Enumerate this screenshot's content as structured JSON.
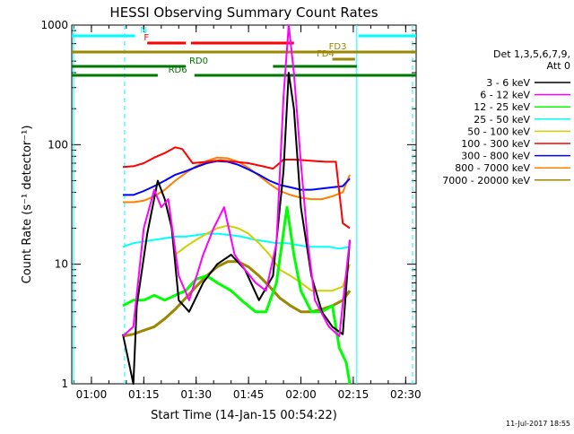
{
  "chart_data": {
    "type": "line",
    "title": "HESSI Observing Summary Count Rates",
    "xlabel": "Start Time (14-Jan-15 00:54:22)",
    "ylabel": "Count Rate (s⁻¹ detector⁻¹)",
    "y_scale": "log",
    "ylim": [
      1,
      1000
    ],
    "xlim": [
      "00:54:22",
      "02:33:00"
    ],
    "x_ticks": [
      "01:00",
      "01:15",
      "01:30",
      "01:45",
      "02:00",
      "02:15",
      "02:30"
    ],
    "y_ticks": [
      "1",
      "10",
      "100",
      "1000"
    ],
    "grid": false,
    "legend_position": "right",
    "legend_header": [
      "Det 1,3,5,6,7,9,",
      "Att 0"
    ],
    "timestamp": "11-Jul-2017 18:55",
    "flags": [
      {
        "label": "N",
        "color": "#00ffff",
        "segments": [
          [
            "00:54:22",
            "01:12:30"
          ],
          [
            "02:16:30",
            "02:33:00"
          ]
        ]
      },
      {
        "label": "F",
        "color": "#ff0000",
        "segments": [
          [
            "01:16:00",
            "01:27:00"
          ],
          [
            "01:28:30",
            "01:58:00"
          ]
        ]
      },
      {
        "label": "FD3",
        "color": "#9b8700",
        "segments": [
          [
            "00:54:22",
            "02:33:00"
          ]
        ]
      },
      {
        "label": "FD4",
        "color": "#9b8700",
        "segments": [
          [
            "02:09:00",
            "02:15:30"
          ]
        ]
      },
      {
        "label": "RD0",
        "color": "#007800",
        "segments": [
          [
            "00:54:22",
            "01:27:00"
          ],
          [
            "01:52:00",
            "02:16:00"
          ]
        ]
      },
      {
        "label": "RD6",
        "color": "#007800",
        "segments": [
          [
            "00:54:22",
            "01:19:00"
          ],
          [
            "01:29:30",
            "02:33:00"
          ]
        ]
      }
    ],
    "gaps": [
      [
        "01:09:30",
        "02:33:00"
      ]
    ],
    "series": [
      {
        "name": "3 - 6 keV",
        "color": "#000000",
        "points": [
          [
            "01:09:00",
            2.6
          ],
          [
            "01:12:00",
            1.0
          ],
          [
            "01:13:00",
            4.5
          ],
          [
            "01:16:00",
            18
          ],
          [
            "01:19:00",
            50
          ],
          [
            "01:21:00",
            35
          ],
          [
            "01:23:00",
            20
          ],
          [
            "01:25:00",
            5
          ],
          [
            "01:28:00",
            4
          ],
          [
            "01:32:00",
            7
          ],
          [
            "01:36:00",
            10
          ],
          [
            "01:40:00",
            12
          ],
          [
            "01:44:00",
            9
          ],
          [
            "01:48:00",
            5
          ],
          [
            "01:52:00",
            8
          ],
          [
            "01:55:00",
            60
          ],
          [
            "01:56:30",
            400
          ],
          [
            "01:58:00",
            200
          ],
          [
            "02:00:00",
            30
          ],
          [
            "02:03:00",
            8
          ],
          [
            "02:06:00",
            4
          ],
          [
            "02:09:00",
            3
          ],
          [
            "02:12:00",
            2.6
          ],
          [
            "02:14:00",
            16
          ]
        ]
      },
      {
        "name": "6 - 12 keV",
        "color": "#ff00ff",
        "points": [
          [
            "01:09:00",
            2.5
          ],
          [
            "01:12:00",
            3.0
          ],
          [
            "01:15:00",
            20
          ],
          [
            "01:18:00",
            42
          ],
          [
            "01:20:00",
            30
          ],
          [
            "01:22:00",
            35
          ],
          [
            "01:25:00",
            8
          ],
          [
            "01:28:00",
            5
          ],
          [
            "01:32:00",
            12
          ],
          [
            "01:35:00",
            20
          ],
          [
            "01:38:00",
            30
          ],
          [
            "01:41:00",
            12
          ],
          [
            "01:44:00",
            9
          ],
          [
            "01:47:00",
            7
          ],
          [
            "01:50:00",
            6
          ],
          [
            "01:53:00",
            15
          ],
          [
            "01:55:00",
            250
          ],
          [
            "01:56:30",
            1000
          ],
          [
            "01:58:00",
            400
          ],
          [
            "02:00:00",
            70
          ],
          [
            "02:02:00",
            15
          ],
          [
            "02:04:00",
            5
          ],
          [
            "02:08:00",
            3
          ],
          [
            "02:11:00",
            2.5
          ],
          [
            "02:14:00",
            16
          ]
        ]
      },
      {
        "name": "12 - 25 keV",
        "color": "#00ff00",
        "points": [
          [
            "01:09:00",
            4.5
          ],
          [
            "01:12:00",
            5.0
          ],
          [
            "01:15:00",
            5.0
          ],
          [
            "01:18:00",
            5.5
          ],
          [
            "01:21:00",
            5.0
          ],
          [
            "01:24:00",
            5.5
          ],
          [
            "01:27:00",
            6.0
          ],
          [
            "01:30:00",
            7.5
          ],
          [
            "01:33:00",
            8.0
          ],
          [
            "01:36:00",
            7.0
          ],
          [
            "01:40:00",
            6.0
          ],
          [
            "01:43:00",
            5.0
          ],
          [
            "01:47:00",
            4.0
          ],
          [
            "01:50:00",
            4.0
          ],
          [
            "01:53:00",
            7.0
          ],
          [
            "01:56:00",
            30
          ],
          [
            "01:58:00",
            12
          ],
          [
            "02:00:00",
            6.0
          ],
          [
            "02:03:00",
            4.0
          ],
          [
            "02:06:00",
            4.0
          ],
          [
            "02:09:00",
            4.5
          ],
          [
            "02:11:00",
            2.0
          ],
          [
            "02:13:00",
            1.5
          ],
          [
            "02:14:00",
            1.0
          ]
        ]
      },
      {
        "name": "25 - 50 keV",
        "color": "#00ffff",
        "points": [
          [
            "01:09:00",
            14
          ],
          [
            "01:12:00",
            15
          ],
          [
            "01:15:00",
            15.5
          ],
          [
            "01:18:00",
            16
          ],
          [
            "01:21:00",
            16.5
          ],
          [
            "01:24:00",
            17
          ],
          [
            "01:27:00",
            17
          ],
          [
            "01:30:00",
            17.5
          ],
          [
            "01:33:00",
            18
          ],
          [
            "01:36:00",
            18
          ],
          [
            "01:40:00",
            17.5
          ],
          [
            "01:43:00",
            17
          ],
          [
            "01:47:00",
            16
          ],
          [
            "01:50:00",
            15.5
          ],
          [
            "01:53:00",
            15
          ],
          [
            "01:56:00",
            15
          ],
          [
            "01:59:00",
            14.5
          ],
          [
            "02:02:00",
            14
          ],
          [
            "02:05:00",
            14
          ],
          [
            "02:08:00",
            14
          ],
          [
            "02:11:00",
            13.5
          ],
          [
            "02:14:00",
            14
          ]
        ]
      },
      {
        "name": "50 - 100 keV",
        "color": "#d0d000",
        "points": [
          [
            "01:24:00",
            12
          ],
          [
            "01:27:00",
            14
          ],
          [
            "01:30:00",
            16
          ],
          [
            "01:33:00",
            18
          ],
          [
            "01:36:00",
            20
          ],
          [
            "01:39:00",
            21
          ],
          [
            "01:42:00",
            20
          ],
          [
            "01:45:00",
            18
          ],
          [
            "01:48:00",
            15
          ],
          [
            "01:51:00",
            12
          ],
          [
            "01:54:00",
            9
          ],
          [
            "01:57:00",
            8
          ],
          [
            "02:00:00",
            7
          ],
          [
            "02:03:00",
            6
          ],
          [
            "02:06:00",
            6
          ],
          [
            "02:09:00",
            6
          ],
          [
            "02:12:00",
            6.5
          ],
          [
            "02:14:00",
            10
          ]
        ]
      },
      {
        "name": "100 - 300 keV",
        "color": "#ff0000",
        "points": [
          [
            "01:09:00",
            65
          ],
          [
            "01:12:00",
            66
          ],
          [
            "01:15:00",
            70
          ],
          [
            "01:18:00",
            78
          ],
          [
            "01:21:00",
            85
          ],
          [
            "01:24:00",
            95
          ],
          [
            "01:26:00",
            92
          ],
          [
            "01:29:00",
            70
          ],
          [
            "01:33:00",
            72
          ],
          [
            "01:37:00",
            74
          ],
          [
            "01:41:00",
            72
          ],
          [
            "01:45:00",
            70
          ],
          [
            "01:49:00",
            66
          ],
          [
            "01:52:00",
            63
          ],
          [
            "01:55:00",
            75
          ],
          [
            "01:58:00",
            75
          ],
          [
            "02:01:00",
            74
          ],
          [
            "02:04:00",
            73
          ],
          [
            "02:07:00",
            72
          ],
          [
            "02:10:00",
            72
          ],
          [
            "02:12:00",
            22
          ],
          [
            "02:14:00",
            20
          ]
        ]
      },
      {
        "name": "300 - 800 keV",
        "color": "#0000ff",
        "points": [
          [
            "01:09:00",
            38
          ],
          [
            "01:12:00",
            38
          ],
          [
            "01:15:00",
            41
          ],
          [
            "01:18:00",
            45
          ],
          [
            "01:21:00",
            50
          ],
          [
            "01:24:00",
            56
          ],
          [
            "01:27:00",
            60
          ],
          [
            "01:30:00",
            65
          ],
          [
            "01:33:00",
            70
          ],
          [
            "01:36:00",
            73
          ],
          [
            "01:39:00",
            72
          ],
          [
            "01:42:00",
            68
          ],
          [
            "01:45:00",
            62
          ],
          [
            "01:48:00",
            56
          ],
          [
            "01:51:00",
            50
          ],
          [
            "01:54:00",
            46
          ],
          [
            "01:57:00",
            44
          ],
          [
            "02:00:00",
            42
          ],
          [
            "02:03:00",
            42
          ],
          [
            "02:06:00",
            43
          ],
          [
            "02:09:00",
            44
          ],
          [
            "02:12:00",
            45
          ],
          [
            "02:14:00",
            52
          ]
        ]
      },
      {
        "name": "800 - 7000 keV",
        "color": "#ff8000",
        "points": [
          [
            "01:09:00",
            33
          ],
          [
            "01:12:00",
            33
          ],
          [
            "01:15:00",
            34
          ],
          [
            "01:18:00",
            37
          ],
          [
            "01:21:00",
            42
          ],
          [
            "01:24:00",
            50
          ],
          [
            "01:27:00",
            58
          ],
          [
            "01:30:00",
            66
          ],
          [
            "01:33:00",
            73
          ],
          [
            "01:36:00",
            78
          ],
          [
            "01:39:00",
            77
          ],
          [
            "01:42:00",
            72
          ],
          [
            "01:45:00",
            64
          ],
          [
            "01:48:00",
            55
          ],
          [
            "01:51:00",
            47
          ],
          [
            "01:54:00",
            41
          ],
          [
            "01:57:00",
            38
          ],
          [
            "02:00:00",
            36
          ],
          [
            "02:03:00",
            35
          ],
          [
            "02:06:00",
            35
          ],
          [
            "02:09:00",
            37
          ],
          [
            "02:12:00",
            40
          ],
          [
            "02:14:00",
            56
          ]
        ]
      },
      {
        "name": "7000 - 20000 keV",
        "color": "#9b8700",
        "points": [
          [
            "01:09:00",
            2.5
          ],
          [
            "01:12:00",
            2.6
          ],
          [
            "01:15:00",
            2.8
          ],
          [
            "01:18:00",
            3.0
          ],
          [
            "01:21:00",
            3.5
          ],
          [
            "01:24:00",
            4.2
          ],
          [
            "01:27:00",
            5.2
          ],
          [
            "01:30:00",
            6.5
          ],
          [
            "01:33:00",
            8.0
          ],
          [
            "01:36:00",
            9.5
          ],
          [
            "01:39:00",
            10.5
          ],
          [
            "01:42:00",
            10.5
          ],
          [
            "01:45:00",
            9.5
          ],
          [
            "01:48:00",
            8.0
          ],
          [
            "01:51:00",
            6.5
          ],
          [
            "01:54:00",
            5.2
          ],
          [
            "01:57:00",
            4.5
          ],
          [
            "02:00:00",
            4.0
          ],
          [
            "02:03:00",
            4.0
          ],
          [
            "02:06:00",
            4.2
          ],
          [
            "02:09:00",
            4.5
          ],
          [
            "02:12:00",
            5.0
          ],
          [
            "02:14:00",
            6.0
          ]
        ]
      }
    ]
  }
}
